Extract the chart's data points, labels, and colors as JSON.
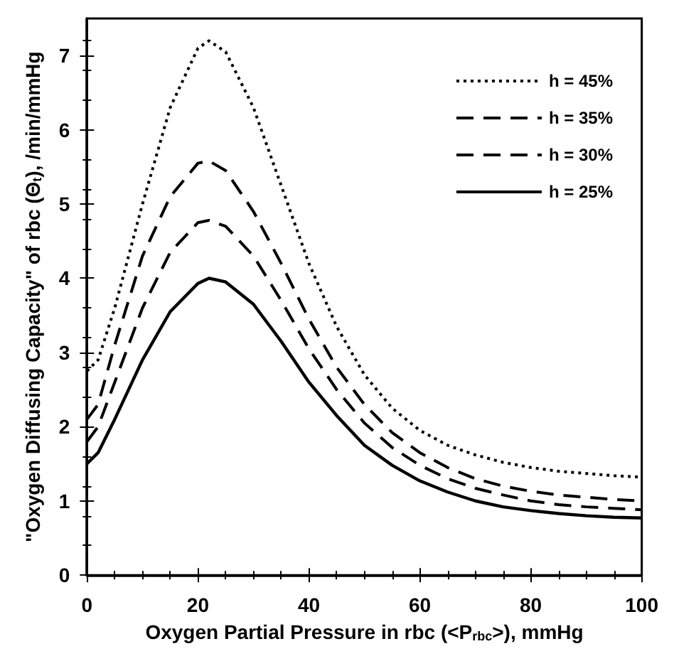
{
  "chart_data": {
    "type": "line",
    "xlabel": "Oxygen Partial Pressure in rbc (<P$_{rbc}$>), mmHg",
    "ylabel": "\"Oxygen Diffusing Capacity\" of rbc (Θ$_{t}$), /min/mmHg",
    "x": [
      0,
      2,
      5,
      10,
      15,
      20,
      22,
      25,
      30,
      35,
      40,
      45,
      50,
      55,
      60,
      65,
      70,
      75,
      80,
      85,
      90,
      95,
      100
    ],
    "series": [
      {
        "name": "h = 45%",
        "color": "#000000",
        "line_style": "dotted",
        "values": [
          2.75,
          2.9,
          3.6,
          5.0,
          6.3,
          7.1,
          7.2,
          7.05,
          6.3,
          5.25,
          4.2,
          3.35,
          2.7,
          2.25,
          1.95,
          1.75,
          1.62,
          1.52,
          1.45,
          1.4,
          1.37,
          1.34,
          1.32
        ]
      },
      {
        "name": "h = 35%",
        "color": "#000000",
        "line_style": "dashed",
        "values": [
          2.1,
          2.3,
          3.1,
          4.3,
          5.1,
          5.55,
          5.58,
          5.45,
          4.9,
          4.2,
          3.45,
          2.8,
          2.3,
          1.92,
          1.65,
          1.45,
          1.3,
          1.2,
          1.13,
          1.08,
          1.05,
          1.02,
          1.0
        ]
      },
      {
        "name": "h = 30%",
        "color": "#000000",
        "line_style": "dashed",
        "values": [
          1.8,
          2.0,
          2.6,
          3.6,
          4.35,
          4.75,
          4.78,
          4.7,
          4.3,
          3.7,
          3.05,
          2.5,
          2.05,
          1.72,
          1.48,
          1.3,
          1.17,
          1.08,
          1.0,
          0.95,
          0.92,
          0.9,
          0.88
        ]
      },
      {
        "name": "h = 25%",
        "color": "#000000",
        "line_style": "solid",
        "values": [
          1.5,
          1.65,
          2.1,
          2.9,
          3.55,
          3.93,
          4.0,
          3.95,
          3.65,
          3.15,
          2.6,
          2.15,
          1.75,
          1.48,
          1.27,
          1.12,
          1.0,
          0.92,
          0.87,
          0.83,
          0.8,
          0.78,
          0.77
        ]
      }
    ],
    "xlim": [
      0,
      100
    ],
    "xticks": [
      0,
      20,
      40,
      60,
      80,
      100
    ],
    "ylim": [
      0,
      7.5
    ],
    "yticks": [
      0,
      1,
      2,
      3,
      4,
      5,
      6,
      7
    ],
    "grid": false,
    "legend": "top right",
    "marker": "none"
  }
}
